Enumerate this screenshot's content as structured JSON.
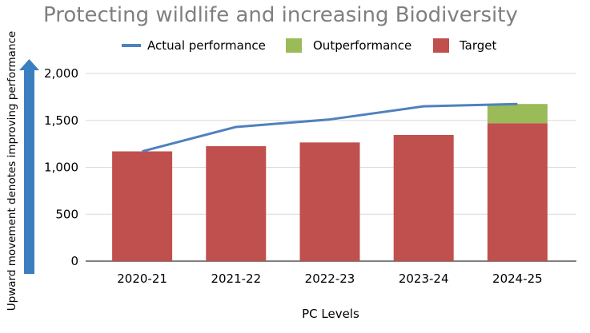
{
  "chart_data": {
    "type": "bar",
    "title": "Protecting wildlife and increasing Biodiversity",
    "xlabel": "PC Levels",
    "ylabel": "Upward movement denotes improving performance",
    "categories": [
      "2020-21",
      "2021-22",
      "2022-23",
      "2023-24",
      "2024-25"
    ],
    "ylim": [
      0,
      2000
    ],
    "yticks": [
      0,
      500,
      1000,
      1500,
      2000
    ],
    "ytick_labels": [
      "0",
      "500",
      "1,000",
      "1,500",
      "2,000"
    ],
    "grid": true,
    "legend_position": "top",
    "series": [
      {
        "name": "Actual performance",
        "kind": "line",
        "color": "#4f81bd",
        "values": [
          1170,
          1430,
          1510,
          1650,
          1675
        ]
      },
      {
        "name": "Outperformance",
        "kind": "bar-stacked",
        "color": "#9bbb59",
        "values": [
          0,
          0,
          0,
          0,
          205
        ]
      },
      {
        "name": "Target",
        "kind": "bar-stacked",
        "color": "#c0504d",
        "values": [
          1170,
          1225,
          1265,
          1345,
          1470
        ]
      }
    ],
    "arrow_color": "#3c7fc0"
  }
}
